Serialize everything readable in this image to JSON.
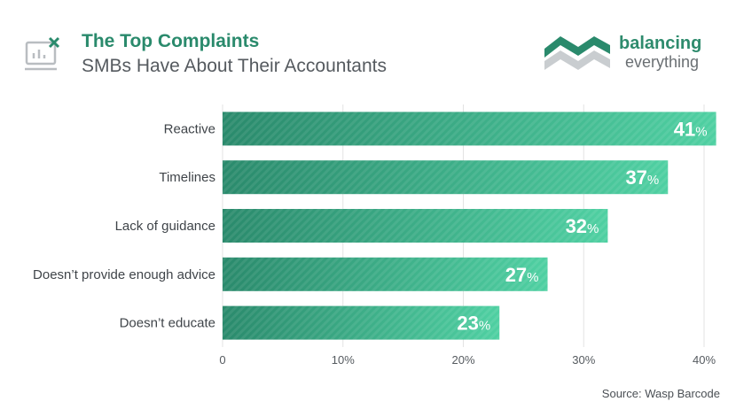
{
  "header": {
    "title": "The Top Complaints",
    "subtitle": "SMBs Have About Their Accountants",
    "icon": "chart-close-icon"
  },
  "brand": {
    "name": "balancing",
    "tagline": "everything",
    "logo_icon": "balancing-everything-logo"
  },
  "source": "Source: Wasp Barcode",
  "colors": {
    "bar_start": "#2a8a6c",
    "bar_end": "#4fd0a2",
    "accent": "#2a8a6c",
    "text": "#4a4f54",
    "grid": "#e3e3e3"
  },
  "chart_data": {
    "type": "bar",
    "orientation": "horizontal",
    "categories": [
      "Reactive",
      "Timelines",
      "Lack of guidance",
      "Doesn’t provide enough advice",
      "Doesn’t educate"
    ],
    "values": [
      41,
      37,
      32,
      27,
      23
    ],
    "value_labels": [
      "41%",
      "37%",
      "32%",
      "27%",
      "23%"
    ],
    "x_ticks": [
      "0",
      "10%",
      "20%",
      "30%",
      "40%"
    ],
    "xlim": [
      0,
      40
    ],
    "grid": true
  }
}
